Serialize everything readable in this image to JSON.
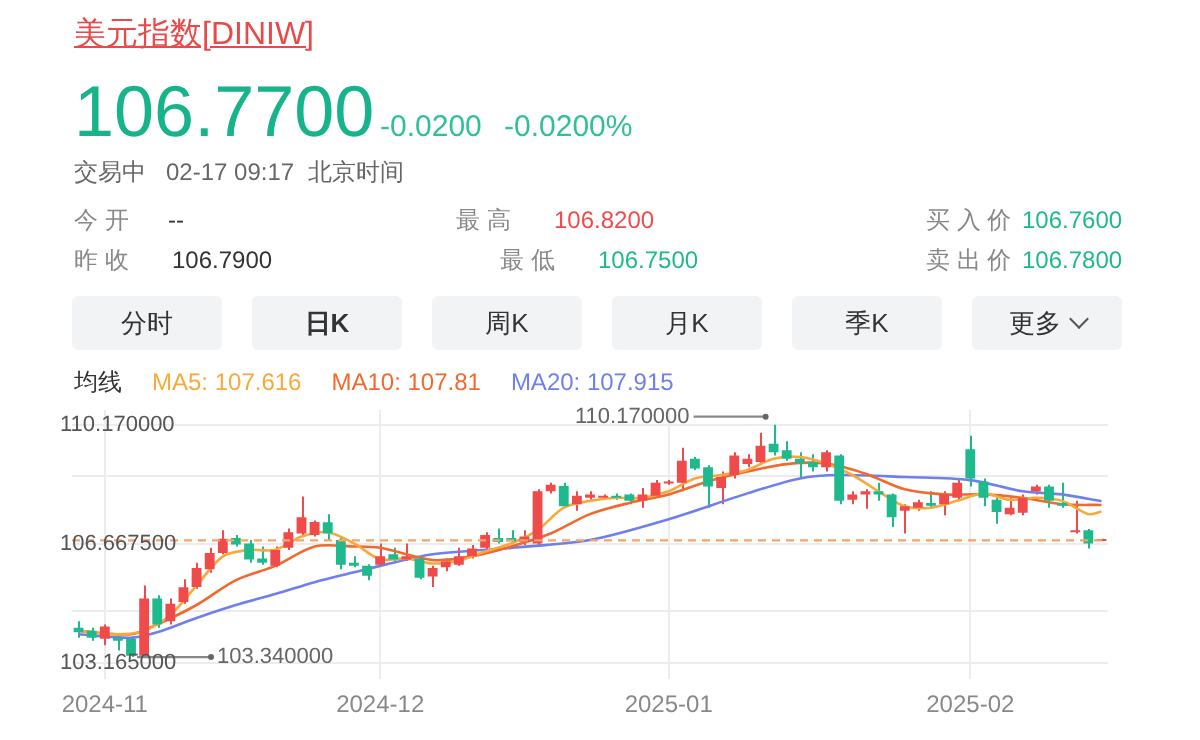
{
  "chart_data": {
    "type": "candlestick",
    "title": "美元指数[DINIW]",
    "legend_title": "均线",
    "legend": "top left",
    "grid": true,
    "categories": [
      null,
      null,
      "2024-11",
      null,
      null,
      null,
      null,
      null,
      null,
      null,
      null,
      null,
      null,
      null,
      null,
      null,
      null,
      null,
      null,
      null,
      null,
      null,
      null,
      "2024-12",
      null,
      null,
      null,
      null,
      null,
      null,
      null,
      null,
      null,
      null,
      null,
      null,
      null,
      null,
      null,
      null,
      null,
      null,
      null,
      null,
      null,
      "2025-01",
      null,
      null,
      null,
      null,
      null,
      null,
      null,
      null,
      null,
      null,
      null,
      null,
      null,
      null,
      null,
      null,
      null,
      null,
      null,
      null,
      null,
      null,
      "2025-02",
      null,
      null,
      null,
      null,
      null,
      null,
      null,
      null,
      null,
      null
    ],
    "ohlc": [
      [
        104.2,
        104.39,
        103.91,
        104.07
      ],
      [
        104.11,
        104.2,
        103.82,
        103.91
      ],
      [
        103.88,
        104.3,
        103.69,
        104.24
      ],
      [
        103.91,
        103.95,
        103.53,
        103.82
      ],
      [
        103.88,
        103.95,
        103.34,
        103.38
      ],
      [
        103.38,
        105.44,
        103.36,
        105.06
      ],
      [
        105.06,
        105.16,
        104.2,
        104.3
      ],
      [
        104.39,
        105.06,
        104.3,
        104.91
      ],
      [
        104.96,
        105.63,
        104.91,
        105.39
      ],
      [
        105.4,
        106.11,
        105.35,
        105.96
      ],
      [
        105.92,
        106.55,
        105.82,
        106.4
      ],
      [
        106.4,
        107.07,
        106.36,
        106.82
      ],
      [
        106.84,
        106.93,
        106.59,
        106.65
      ],
      [
        106.68,
        106.78,
        106.11,
        106.21
      ],
      [
        106.24,
        106.59,
        106.05,
        106.11
      ],
      [
        106.02,
        106.59,
        105.98,
        106.49
      ],
      [
        106.55,
        107.12,
        106.49,
        107.01
      ],
      [
        106.97,
        108.06,
        106.93,
        107.45
      ],
      [
        106.93,
        107.35,
        106.88,
        107.31
      ],
      [
        107.3,
        107.54,
        106.78,
        106.97
      ],
      [
        106.78,
        106.88,
        105.92,
        106.05
      ],
      [
        106.11,
        106.3,
        105.98,
        106.02
      ],
      [
        106.02,
        106.07,
        105.6,
        105.73
      ],
      [
        106.05,
        106.68,
        106.02,
        106.3
      ],
      [
        106.36,
        106.55,
        106.11,
        106.21
      ],
      [
        106.21,
        106.68,
        106.17,
        106.3
      ],
      [
        106.24,
        106.3,
        105.63,
        105.67
      ],
      [
        105.71,
        106.02,
        105.4,
        105.96
      ],
      [
        105.98,
        106.24,
        105.86,
        106.15
      ],
      [
        106.05,
        106.55,
        106.02,
        106.3
      ],
      [
        106.3,
        106.63,
        106.24,
        106.53
      ],
      [
        106.55,
        107.01,
        106.49,
        106.93
      ],
      [
        106.84,
        107.12,
        106.68,
        106.72
      ],
      [
        106.84,
        107.07,
        106.68,
        106.74
      ],
      [
        106.72,
        107.07,
        106.63,
        106.88
      ],
      [
        106.68,
        108.27,
        106.63,
        108.21
      ],
      [
        108.21,
        108.46,
        108.15,
        108.4
      ],
      [
        108.37,
        108.46,
        107.73,
        107.77
      ],
      [
        107.83,
        108.21,
        107.64,
        108.08
      ],
      [
        108.02,
        108.21,
        107.96,
        108.12
      ],
      [
        108.02,
        108.12,
        107.98,
        108.08
      ],
      [
        108.08,
        108.15,
        107.96,
        108.02
      ],
      [
        108.12,
        108.15,
        107.83,
        107.93
      ],
      [
        107.93,
        108.31,
        107.73,
        108.12
      ],
      [
        108.08,
        108.54,
        108.02,
        108.46
      ],
      [
        108.44,
        108.54,
        108.4,
        108.5
      ],
      [
        108.46,
        109.49,
        108.21,
        109.11
      ],
      [
        109.17,
        109.22,
        108.84,
        108.88
      ],
      [
        108.92,
        108.98,
        107.73,
        108.35
      ],
      [
        108.31,
        108.79,
        107.83,
        108.63
      ],
      [
        108.69,
        109.36,
        108.59,
        109.26
      ],
      [
        109.01,
        109.3,
        108.92,
        109.17
      ],
      [
        109.07,
        109.93,
        109.03,
        109.55
      ],
      [
        109.61,
        110.17,
        109.26,
        109.36
      ],
      [
        109.42,
        109.68,
        109.11,
        109.17
      ],
      [
        109.17,
        109.36,
        108.59,
        109.03
      ],
      [
        109.07,
        109.3,
        108.79,
        108.92
      ],
      [
        108.92,
        109.42,
        108.79,
        109.36
      ],
      [
        109.26,
        109.3,
        107.83,
        107.93
      ],
      [
        107.96,
        108.21,
        107.83,
        108.12
      ],
      [
        108.12,
        108.27,
        107.7,
        108.21
      ],
      [
        108.21,
        108.46,
        107.93,
        108.12
      ],
      [
        108.12,
        108.15,
        107.16,
        107.45
      ],
      [
        107.64,
        107.83,
        106.97,
        107.77
      ],
      [
        107.73,
        107.96,
        107.64,
        107.89
      ],
      [
        107.87,
        108.21,
        107.7,
        107.79
      ],
      [
        107.83,
        108.21,
        107.51,
        108.12
      ],
      [
        108.02,
        108.54,
        107.96,
        108.46
      ],
      [
        109.45,
        109.84,
        108.35,
        108.59
      ],
      [
        108.5,
        108.59,
        107.77,
        108.02
      ],
      [
        107.96,
        108.02,
        107.26,
        107.6
      ],
      [
        107.54,
        108.02,
        107.51,
        107.73
      ],
      [
        107.58,
        108.12,
        107.51,
        108.02
      ],
      [
        108.21,
        108.4,
        108.12,
        108.35
      ],
      [
        108.35,
        108.4,
        107.73,
        107.93
      ],
      [
        107.87,
        108.46,
        107.73,
        107.79
      ],
      [
        107.01,
        107.93,
        106.97,
        107.07
      ],
      [
        107.07,
        107.1,
        106.53,
        106.68
      ],
      [
        106.75,
        106.82,
        106.75,
        106.77
      ]
    ],
    "colors": [
      "#1fb98e",
      "#1fb98e",
      "#f04b4b",
      "#1fb98e",
      "#1fb98e",
      "#f04b4b",
      "#1fb98e",
      "#f04b4b",
      "#f04b4b",
      "#f04b4b",
      "#f04b4b",
      "#f04b4b",
      "#1fb98e",
      "#1fb98e",
      "#1fb98e",
      "#f04b4b",
      "#f04b4b",
      "#f04b4b",
      "#f04b4b",
      "#1fb98e",
      "#1fb98e",
      "#1fb98e",
      "#1fb98e",
      "#f04b4b",
      "#1fb98e",
      "#f04b4b",
      "#1fb98e",
      "#f04b4b",
      "#f04b4b",
      "#f04b4b",
      "#f04b4b",
      "#f04b4b",
      "#1fb98e",
      "#1fb98e",
      "#f04b4b",
      "#f04b4b",
      "#f04b4b",
      "#1fb98e",
      "#f04b4b",
      "#f04b4b",
      "#f04b4b",
      "#1fb98e",
      "#1fb98e",
      "#f04b4b",
      "#f04b4b",
      "#f04b4b",
      "#f04b4b",
      "#1fb98e",
      "#1fb98e",
      "#f04b4b",
      "#f04b4b",
      "#f04b4b",
      "#f04b4b",
      "#1fb98e",
      "#1fb98e",
      "#1fb98e",
      "#1fb98e",
      "#f04b4b",
      "#1fb98e",
      "#f04b4b",
      "#f04b4b",
      "#1fb98e",
      "#1fb98e",
      "#f04b4b",
      "#f04b4b",
      "#1fb98e",
      "#f04b4b",
      "#f04b4b",
      "#1fb98e",
      "#1fb98e",
      "#1fb98e",
      "#f04b4b",
      "#f04b4b",
      "#f04b4b",
      "#1fb98e",
      "#1fb98e",
      "#f04b4b",
      "#1fb98e",
      "#f04b4b"
    ],
    "series": [
      {
        "name": "MA5: 107.616",
        "type": "line",
        "color": "#f7a93b",
        "values": [
          104.11,
          null,
          null,
          104.01,
          null,
          104.11,
          null,
          104.58,
          null,
          105.44,
          null,
          106.3,
          null,
          106.49,
          null,
          106.49,
          null,
          106.88,
          null,
          107.01,
          null,
          106.68,
          null,
          106.21,
          null,
          106.24,
          null,
          106.09,
          null,
          106.17,
          null,
          106.44,
          null,
          106.68,
          null,
          107.07,
          null,
          107.73,
          null,
          107.93,
          null,
          108.02,
          null,
          108.02,
          null,
          108.21,
          null,
          108.59,
          null,
          108.69,
          null,
          108.84,
          null,
          109.17,
          null,
          109.22,
          null,
          109.03,
          null,
          108.69,
          null,
          108.21,
          null,
          107.77,
          null,
          107.73,
          null,
          107.93,
          null,
          108.15,
          null,
          107.96,
          null,
          108.02,
          null,
          107.93,
          null,
          107.54,
          107.62
        ]
      },
      {
        "name": "MA10: 107.81",
        "type": "line",
        "color": "#f2692f",
        "values": [
          104.11,
          null,
          null,
          null,
          104.01,
          null,
          104.3,
          null,
          null,
          104.87,
          null,
          null,
          105.6,
          null,
          null,
          106.02,
          null,
          null,
          106.59,
          null,
          null,
          106.59,
          null,
          106.55,
          null,
          null,
          null,
          106.19,
          null,
          null,
          106.3,
          null,
          null,
          106.59,
          null,
          null,
          106.97,
          null,
          null,
          107.54,
          null,
          null,
          107.87,
          null,
          null,
          108.12,
          null,
          null,
          108.5,
          null,
          null,
          108.79,
          null,
          null,
          109.01,
          null,
          null,
          109.03,
          null,
          null,
          108.73,
          null,
          null,
          108.27,
          null,
          null,
          108.12,
          null,
          null,
          108.12,
          null,
          null,
          108.02,
          null,
          null,
          107.83,
          null,
          null,
          107.81
        ]
      },
      {
        "name": "MA20: 107.915",
        "type": "line",
        "color": "#6f7fec",
        "values": [
          104.01,
          null,
          null,
          null,
          103.91,
          null,
          104.07,
          null,
          null,
          104.49,
          null,
          null,
          104.87,
          null,
          null,
          105.19,
          null,
          null,
          105.54,
          null,
          null,
          105.83,
          null,
          106.02,
          null,
          null,
          null,
          106.36,
          null,
          null,
          null,
          null,
          null,
          106.55,
          null,
          null,
          null,
          null,
          null,
          106.78,
          null,
          null,
          null,
          null,
          null,
          107.39,
          null,
          null,
          null,
          null,
          null,
          108.15,
          null,
          null,
          null,
          108.59,
          null,
          null,
          108.69,
          null,
          null,
          null,
          null,
          108.63,
          null,
          null,
          null,
          null,
          108.54,
          null,
          null,
          null,
          108.21,
          null,
          null,
          108.12,
          null,
          null,
          107.92
        ]
      }
    ],
    "ylim": [
      102.69,
      110.6
    ],
    "yticks": [
      {
        "value": 110.17,
        "label": "110.170000"
      },
      {
        "value": 108.65,
        "label": null
      },
      {
        "value": 106.6675,
        "label": "106.667500"
      },
      {
        "value": 104.7,
        "label": null
      },
      {
        "value": 103.165,
        "label": "103.165000"
      }
    ],
    "ref_lines": [
      {
        "axis": "y",
        "value": 106.77,
        "color": "#f7a36a",
        "line_style": "dashed"
      }
    ],
    "annotations": [
      "106.7700",
      "-0.0200",
      "-0.0200%",
      "交易中",
      "02-17 09:17",
      "北京时间",
      "今 开",
      "--",
      "最 高",
      "106.8200",
      "买 入 价",
      "106.7600",
      "昨 收",
      "106.7900",
      "最 低",
      "106.7500",
      "卖 出 价",
      "106.7800",
      "分时",
      "日K",
      "周K",
      "月K",
      "季K",
      "更多",
      "110.170000",
      "103.340000"
    ]
  }
}
